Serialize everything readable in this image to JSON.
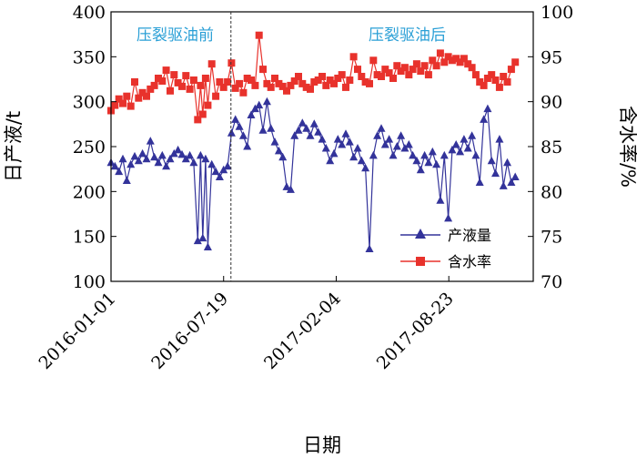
{
  "chart_data": {
    "type": "line",
    "title": "",
    "xlabel": "日期",
    "ylabel_left": "日产液/t",
    "ylabel_right": "含水率/%",
    "y_left_lim": [
      100,
      400
    ],
    "y_left_ticks": [
      "100",
      "150",
      "200",
      "250",
      "300",
      "350",
      "400"
    ],
    "y_right_lim": [
      70,
      100
    ],
    "y_right_ticks": [
      "70",
      "75",
      "80",
      "85",
      "90",
      "95",
      "100"
    ],
    "x_ticks": [
      "2016-01-01",
      "2016-07-19",
      "2017-02-04",
      "2017-08-23"
    ],
    "x_start": "2016-01-01",
    "x_end": "2018-01-20",
    "divider_date": "2016-08-01",
    "annotations": [
      "压裂驱油前",
      "压裂驱油后"
    ],
    "legend_position": "bottom-right",
    "grid": false,
    "series": [
      {
        "name": "产液量",
        "axis": "left",
        "color": "#33339a",
        "marker": "triangle",
        "points": [
          [
            "2016-01-01",
            232
          ],
          [
            "2016-01-08",
            228
          ],
          [
            "2016-01-15",
            222
          ],
          [
            "2016-01-22",
            236
          ],
          [
            "2016-01-29",
            212
          ],
          [
            "2016-02-05",
            230
          ],
          [
            "2016-02-12",
            239
          ],
          [
            "2016-02-19",
            234
          ],
          [
            "2016-02-26",
            242
          ],
          [
            "2016-03-04",
            236
          ],
          [
            "2016-03-11",
            256
          ],
          [
            "2016-03-18",
            238
          ],
          [
            "2016-03-25",
            232
          ],
          [
            "2016-04-01",
            240
          ],
          [
            "2016-04-08",
            228
          ],
          [
            "2016-04-15",
            236
          ],
          [
            "2016-04-22",
            242
          ],
          [
            "2016-04-29",
            246
          ],
          [
            "2016-05-06",
            241
          ],
          [
            "2016-05-13",
            236
          ],
          [
            "2016-05-20",
            240
          ],
          [
            "2016-05-27",
            232
          ],
          [
            "2016-06-03",
            145
          ],
          [
            "2016-06-08",
            240
          ],
          [
            "2016-06-12",
            148
          ],
          [
            "2016-06-17",
            236
          ],
          [
            "2016-06-21",
            138
          ],
          [
            "2016-06-28",
            230
          ],
          [
            "2016-07-05",
            222
          ],
          [
            "2016-07-12",
            216
          ],
          [
            "2016-07-19",
            224
          ],
          [
            "2016-07-26",
            228
          ],
          [
            "2016-08-02",
            265
          ],
          [
            "2016-08-09",
            280
          ],
          [
            "2016-08-16",
            272
          ],
          [
            "2016-08-23",
            262
          ],
          [
            "2016-08-30",
            250
          ],
          [
            "2016-09-06",
            285
          ],
          [
            "2016-09-13",
            292
          ],
          [
            "2016-09-20",
            296
          ],
          [
            "2016-09-27",
            268
          ],
          [
            "2016-10-04",
            300
          ],
          [
            "2016-10-11",
            270
          ],
          [
            "2016-10-18",
            255
          ],
          [
            "2016-10-25",
            245
          ],
          [
            "2016-11-01",
            238
          ],
          [
            "2016-11-08",
            205
          ],
          [
            "2016-11-15",
            202
          ],
          [
            "2016-11-22",
            262
          ],
          [
            "2016-11-29",
            268
          ],
          [
            "2016-12-06",
            276
          ],
          [
            "2016-12-13",
            270
          ],
          [
            "2016-12-20",
            262
          ],
          [
            "2016-12-27",
            275
          ],
          [
            "2017-01-03",
            266
          ],
          [
            "2017-01-10",
            258
          ],
          [
            "2017-01-17",
            248
          ],
          [
            "2017-01-24",
            234
          ],
          [
            "2017-01-31",
            242
          ],
          [
            "2017-02-07",
            258
          ],
          [
            "2017-02-14",
            252
          ],
          [
            "2017-02-21",
            264
          ],
          [
            "2017-02-28",
            255
          ],
          [
            "2017-03-07",
            238
          ],
          [
            "2017-03-14",
            248
          ],
          [
            "2017-03-21",
            234
          ],
          [
            "2017-03-28",
            226
          ],
          [
            "2017-04-04",
            136
          ],
          [
            "2017-04-11",
            240
          ],
          [
            "2017-04-18",
            262
          ],
          [
            "2017-04-25",
            270
          ],
          [
            "2017-05-02",
            252
          ],
          [
            "2017-05-09",
            258
          ],
          [
            "2017-05-16",
            240
          ],
          [
            "2017-05-23",
            250
          ],
          [
            "2017-05-30",
            262
          ],
          [
            "2017-06-06",
            248
          ],
          [
            "2017-06-13",
            252
          ],
          [
            "2017-06-20",
            240
          ],
          [
            "2017-06-27",
            234
          ],
          [
            "2017-07-04",
            224
          ],
          [
            "2017-07-11",
            240
          ],
          [
            "2017-07-18",
            232
          ],
          [
            "2017-07-25",
            244
          ],
          [
            "2017-08-01",
            230
          ],
          [
            "2017-08-08",
            190
          ],
          [
            "2017-08-15",
            240
          ],
          [
            "2017-08-22",
            170
          ],
          [
            "2017-08-29",
            246
          ],
          [
            "2017-09-05",
            252
          ],
          [
            "2017-09-12",
            244
          ],
          [
            "2017-09-19",
            258
          ],
          [
            "2017-09-26",
            248
          ],
          [
            "2017-10-03",
            262
          ],
          [
            "2017-10-10",
            240
          ],
          [
            "2017-10-17",
            210
          ],
          [
            "2017-10-24",
            280
          ],
          [
            "2017-10-31",
            292
          ],
          [
            "2017-11-07",
            234
          ],
          [
            "2017-11-14",
            220
          ],
          [
            "2017-11-21",
            258
          ],
          [
            "2017-11-28",
            206
          ],
          [
            "2017-12-05",
            232
          ],
          [
            "2017-12-12",
            210
          ],
          [
            "2017-12-19",
            216
          ]
        ]
      },
      {
        "name": "含水率",
        "axis": "right",
        "color": "#e8322c",
        "marker": "square",
        "points": [
          [
            "2016-01-01",
            89.0
          ],
          [
            "2016-01-08",
            89.6
          ],
          [
            "2016-01-15",
            90.3
          ],
          [
            "2016-01-22",
            89.8
          ],
          [
            "2016-01-29",
            90.6
          ],
          [
            "2016-02-05",
            89.5
          ],
          [
            "2016-02-12",
            92.2
          ],
          [
            "2016-02-19",
            90.4
          ],
          [
            "2016-02-26",
            91.0
          ],
          [
            "2016-03-04",
            90.6
          ],
          [
            "2016-03-11",
            91.4
          ],
          [
            "2016-03-18",
            91.8
          ],
          [
            "2016-03-25",
            92.6
          ],
          [
            "2016-04-01",
            92.3
          ],
          [
            "2016-04-08",
            93.5
          ],
          [
            "2016-04-15",
            91.2
          ],
          [
            "2016-04-22",
            93.0
          ],
          [
            "2016-04-29",
            92.1
          ],
          [
            "2016-05-06",
            91.7
          ],
          [
            "2016-05-13",
            92.9
          ],
          [
            "2016-05-20",
            91.4
          ],
          [
            "2016-05-27",
            92.4
          ],
          [
            "2016-06-03",
            88.0
          ],
          [
            "2016-06-08",
            91.8
          ],
          [
            "2016-06-12",
            88.6
          ],
          [
            "2016-06-17",
            92.6
          ],
          [
            "2016-06-21",
            89.6
          ],
          [
            "2016-06-28",
            94.2
          ],
          [
            "2016-07-05",
            90.6
          ],
          [
            "2016-07-12",
            92.2
          ],
          [
            "2016-07-19",
            91.6
          ],
          [
            "2016-07-26",
            92.2
          ],
          [
            "2016-08-02",
            94.3
          ],
          [
            "2016-08-09",
            91.5
          ],
          [
            "2016-08-16",
            92.0
          ],
          [
            "2016-08-23",
            91.0
          ],
          [
            "2016-08-30",
            92.6
          ],
          [
            "2016-09-06",
            92.4
          ],
          [
            "2016-09-13",
            91.8
          ],
          [
            "2016-09-20",
            97.4
          ],
          [
            "2016-09-27",
            93.6
          ],
          [
            "2016-10-04",
            92.0
          ],
          [
            "2016-10-11",
            91.6
          ],
          [
            "2016-10-18",
            92.6
          ],
          [
            "2016-10-25",
            92.0
          ],
          [
            "2016-11-01",
            91.7
          ],
          [
            "2016-11-08",
            91.2
          ],
          [
            "2016-11-15",
            91.8
          ],
          [
            "2016-11-22",
            92.3
          ],
          [
            "2016-11-29",
            92.8
          ],
          [
            "2016-12-06",
            92.0
          ],
          [
            "2016-12-13",
            91.6
          ],
          [
            "2016-12-20",
            91.4
          ],
          [
            "2016-12-27",
            92.2
          ],
          [
            "2017-01-03",
            92.4
          ],
          [
            "2017-01-10",
            92.8
          ],
          [
            "2017-01-17",
            91.8
          ],
          [
            "2017-01-24",
            92.4
          ],
          [
            "2017-01-31",
            92.0
          ],
          [
            "2017-02-07",
            92.6
          ],
          [
            "2017-02-14",
            93.0
          ],
          [
            "2017-02-21",
            91.6
          ],
          [
            "2017-02-28",
            92.4
          ],
          [
            "2017-03-07",
            95.0
          ],
          [
            "2017-03-14",
            93.6
          ],
          [
            "2017-03-21",
            92.8
          ],
          [
            "2017-03-28",
            92.2
          ],
          [
            "2017-04-04",
            92.0
          ],
          [
            "2017-04-11",
            94.6
          ],
          [
            "2017-04-18",
            93.0
          ],
          [
            "2017-04-25",
            92.8
          ],
          [
            "2017-05-02",
            93.6
          ],
          [
            "2017-05-09",
            93.2
          ],
          [
            "2017-05-16",
            92.6
          ],
          [
            "2017-05-23",
            94.0
          ],
          [
            "2017-05-30",
            93.4
          ],
          [
            "2017-06-06",
            93.8
          ],
          [
            "2017-06-13",
            93.0
          ],
          [
            "2017-06-20",
            93.6
          ],
          [
            "2017-06-27",
            94.2
          ],
          [
            "2017-07-04",
            93.4
          ],
          [
            "2017-07-11",
            94.0
          ],
          [
            "2017-07-18",
            93.0
          ],
          [
            "2017-07-25",
            94.6
          ],
          [
            "2017-08-01",
            94.0
          ],
          [
            "2017-08-08",
            95.4
          ],
          [
            "2017-08-15",
            94.4
          ],
          [
            "2017-08-22",
            95.0
          ],
          [
            "2017-08-29",
            94.6
          ],
          [
            "2017-09-05",
            94.8
          ],
          [
            "2017-09-12",
            94.4
          ],
          [
            "2017-09-19",
            94.8
          ],
          [
            "2017-09-26",
            94.2
          ],
          [
            "2017-10-03",
            93.8
          ],
          [
            "2017-10-10",
            93.0
          ],
          [
            "2017-10-17",
            92.2
          ],
          [
            "2017-10-24",
            91.8
          ],
          [
            "2017-10-31",
            92.6
          ],
          [
            "2017-11-07",
            93.0
          ],
          [
            "2017-11-14",
            92.4
          ],
          [
            "2017-11-21",
            91.6
          ],
          [
            "2017-11-28",
            92.8
          ],
          [
            "2017-12-05",
            92.2
          ],
          [
            "2017-12-12",
            93.6
          ],
          [
            "2017-12-19",
            94.4
          ]
        ]
      }
    ]
  }
}
